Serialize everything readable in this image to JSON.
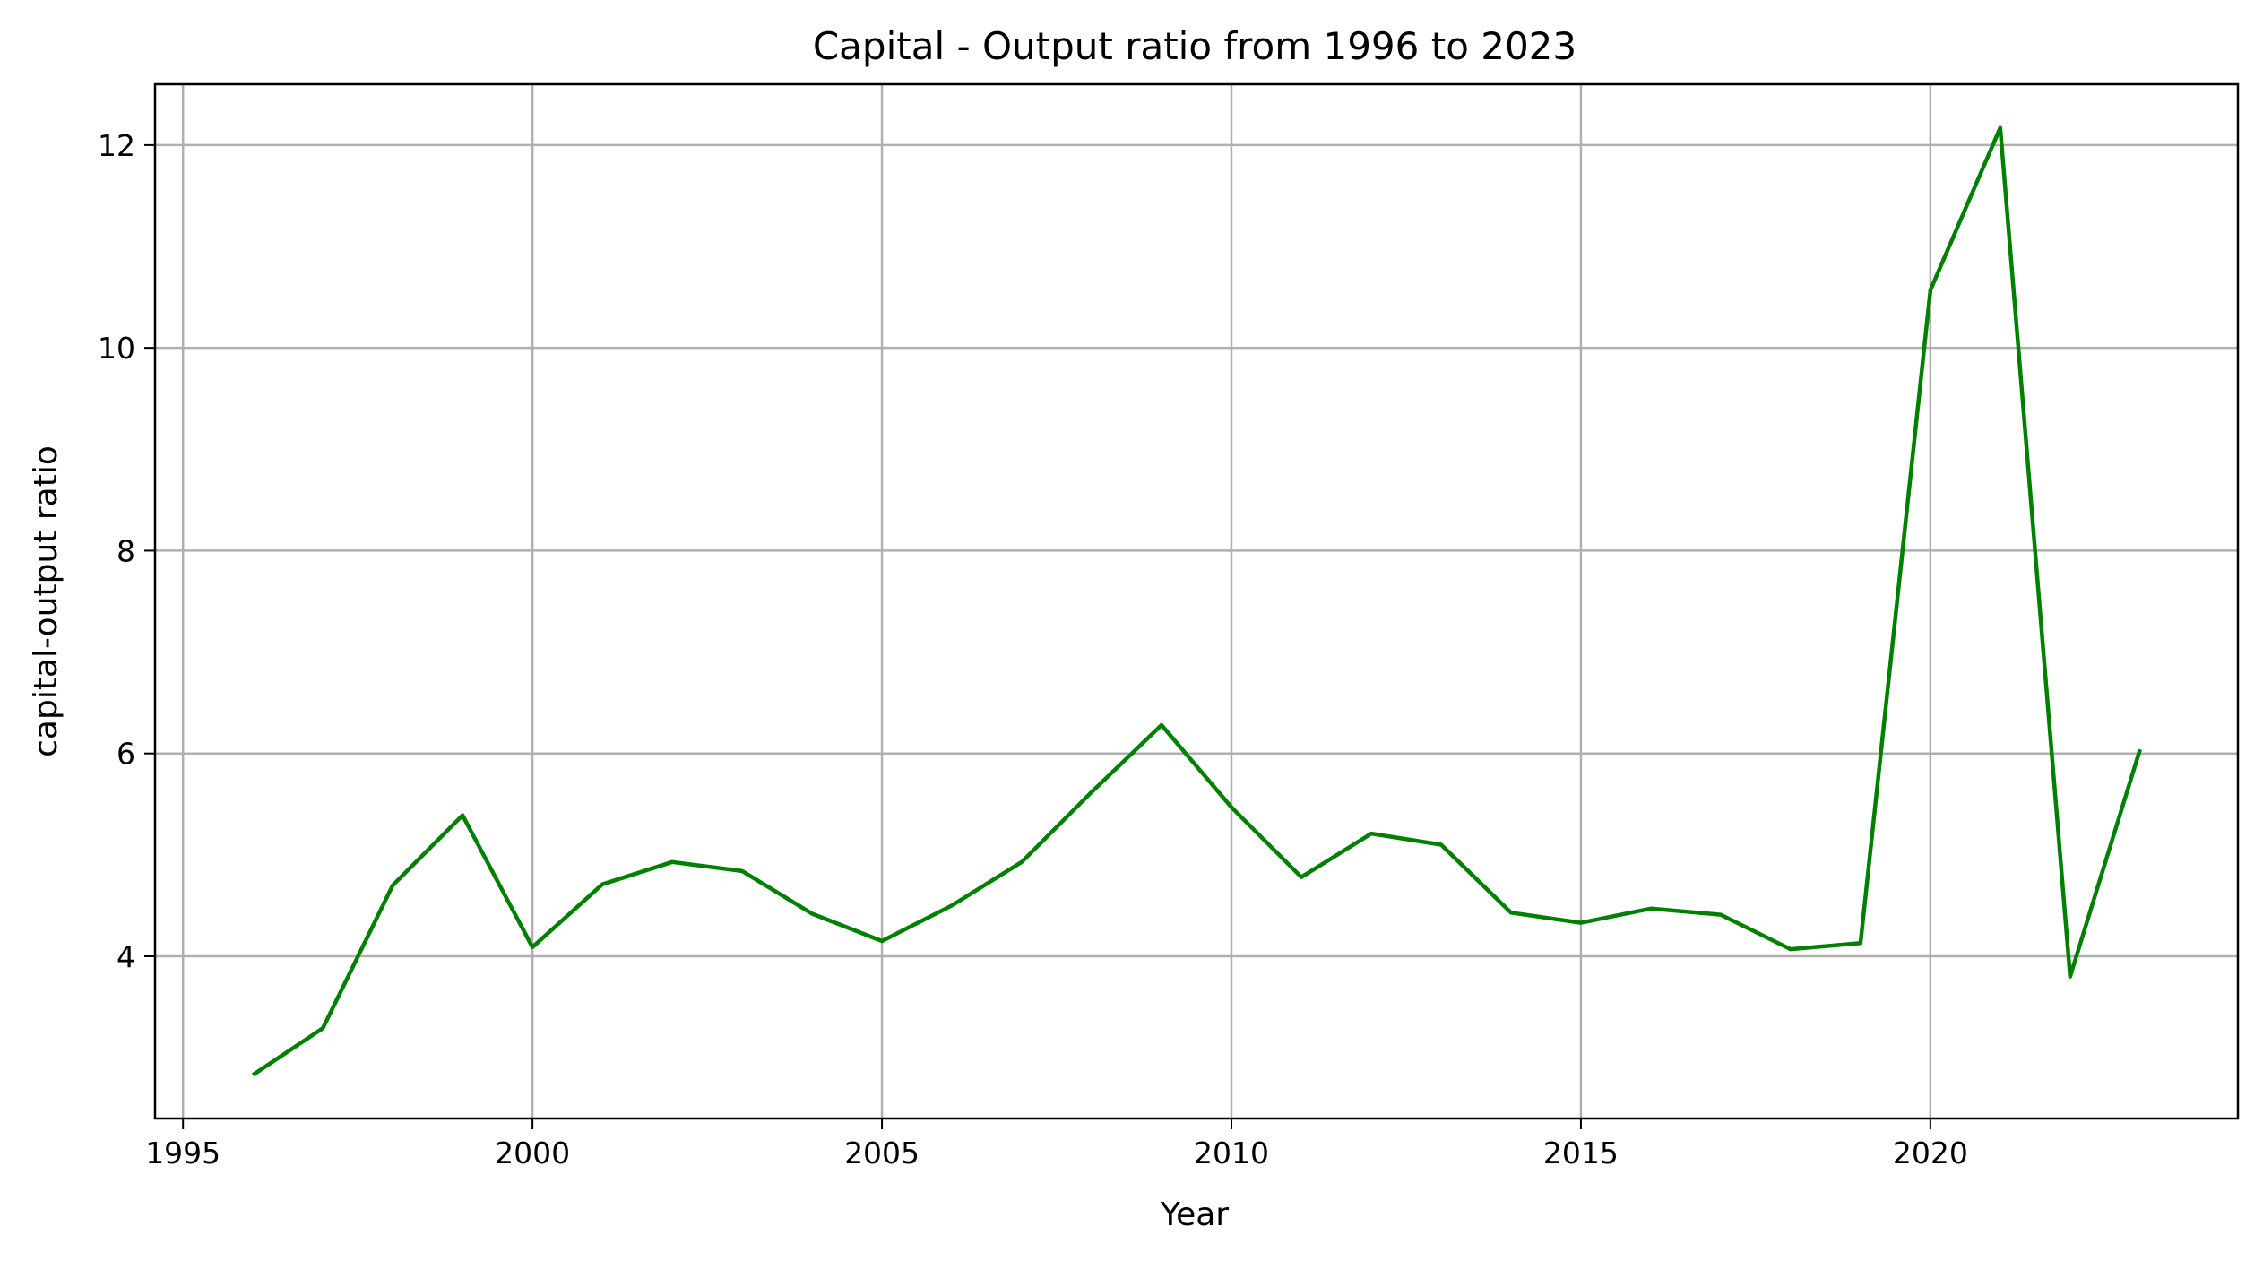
{
  "colors": {
    "series": "#008000",
    "grid": "#b0b0b0",
    "axis": "#000000"
  },
  "chart_data": {
    "type": "line",
    "title": "Capital - Output ratio from 1996 to 2023",
    "xlabel": "Year",
    "ylabel": "capital-output ratio",
    "xlim": [
      1994.6,
      2024.4
    ],
    "ylim": [
      2.4,
      12.6
    ],
    "xticks": [
      1995,
      2000,
      2005,
      2010,
      2015,
      2020
    ],
    "yticks": [
      4,
      6,
      8,
      10,
      12
    ],
    "grid": true,
    "legend": "none",
    "series": [
      {
        "x": [
          1996,
          1997,
          1998,
          1999,
          2000,
          2001,
          2002,
          2003,
          2004,
          2005,
          2006,
          2007,
          2008,
          2009,
          2010,
          2011,
          2012,
          2013,
          2014,
          2015,
          2016,
          2017,
          2018,
          2019,
          2020,
          2021,
          2022,
          2023
        ],
        "y": [
          2.83,
          3.29,
          4.7,
          5.39,
          4.09,
          4.71,
          4.93,
          4.84,
          4.42,
          4.15,
          4.5,
          4.93,
          5.62,
          6.28,
          5.47,
          4.78,
          5.21,
          5.1,
          4.43,
          4.33,
          4.47,
          4.41,
          4.07,
          4.13,
          10.57,
          12.17,
          3.8,
          6.04
        ]
      }
    ]
  }
}
